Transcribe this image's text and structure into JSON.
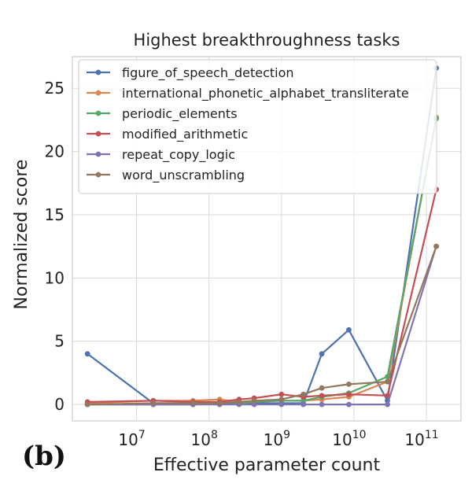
{
  "panel_label": "(b)",
  "chart_data": {
    "type": "line",
    "title": "Highest breakthroughness tasks",
    "xlabel": "Effective parameter count",
    "ylabel": "Normalized score",
    "xscale": "log",
    "xlim": [
      1300000.0,
      300000000000.0
    ],
    "ylim": [
      -1.3,
      27.5
    ],
    "yticks": [
      0,
      5,
      10,
      15,
      20,
      25
    ],
    "xticks": [
      {
        "value": 10000000.0,
        "base": "10",
        "exp": "7"
      },
      {
        "value": 100000000.0,
        "base": "10",
        "exp": "8"
      },
      {
        "value": 1000000000.0,
        "base": "10",
        "exp": "9"
      },
      {
        "value": 10000000000.0,
        "base": "10",
        "exp": "10"
      },
      {
        "value": 100000000000.0,
        "base": "10",
        "exp": "11"
      }
    ],
    "grid": true,
    "legend_position": "upper-left",
    "series": [
      {
        "name": "figure_of_speech_detection",
        "color": "#4c72b0",
        "points": [
          [
            2100000.0,
            4.0
          ],
          [
            17000000.0,
            0.1
          ],
          [
            60000000.0,
            0.1
          ],
          [
            140000000.0,
            0.1
          ],
          [
            260000000.0,
            0.1
          ],
          [
            420000000.0,
            0.1
          ],
          [
            1000000000.0,
            0.1
          ],
          [
            2000000000.0,
            0.1
          ],
          [
            3600000000.0,
            4.0
          ],
          [
            8500000000.0,
            5.9
          ],
          [
            29000000000.0,
            0.3
          ],
          [
            137000000000.0,
            26.6
          ]
        ]
      },
      {
        "name": "international_phonetic_alphabet_transliterate",
        "color": "#dd8452",
        "points": [
          [
            2100000.0,
            0.1
          ],
          [
            17000000.0,
            0.3
          ],
          [
            60000000.0,
            0.3
          ],
          [
            140000000.0,
            0.4
          ],
          [
            260000000.0,
            0.2
          ],
          [
            420000000.0,
            0.2
          ],
          [
            1000000000.0,
            0.3
          ],
          [
            2000000000.0,
            0.3
          ],
          [
            3600000000.0,
            0.4
          ],
          [
            8500000000.0,
            0.6
          ],
          [
            29000000000.0,
            1.8
          ],
          [
            137000000000.0,
            22.7
          ]
        ]
      },
      {
        "name": "periodic_elements",
        "color": "#55a868",
        "points": [
          [
            2100000.0,
            0.0
          ],
          [
            17000000.0,
            0.0
          ],
          [
            60000000.0,
            0.0
          ],
          [
            140000000.0,
            0.1
          ],
          [
            260000000.0,
            0.1
          ],
          [
            420000000.0,
            0.2
          ],
          [
            1000000000.0,
            0.3
          ],
          [
            2000000000.0,
            0.3
          ],
          [
            3600000000.0,
            0.6
          ],
          [
            8500000000.0,
            0.9
          ],
          [
            29000000000.0,
            2.2
          ],
          [
            137000000000.0,
            22.6
          ]
        ]
      },
      {
        "name": "modified_arithmetic",
        "color": "#c44e52",
        "points": [
          [
            2100000.0,
            0.2
          ],
          [
            17000000.0,
            0.3
          ],
          [
            60000000.0,
            0.2
          ],
          [
            140000000.0,
            0.2
          ],
          [
            260000000.0,
            0.4
          ],
          [
            420000000.0,
            0.5
          ],
          [
            1000000000.0,
            0.8
          ],
          [
            2000000000.0,
            0.6
          ],
          [
            3600000000.0,
            0.7
          ],
          [
            8500000000.0,
            0.8
          ],
          [
            29000000000.0,
            0.7
          ],
          [
            137000000000.0,
            17.0
          ]
        ]
      },
      {
        "name": "repeat_copy_logic",
        "color": "#8172b3",
        "points": [
          [
            2100000.0,
            0.0
          ],
          [
            17000000.0,
            0.0
          ],
          [
            60000000.0,
            0.0
          ],
          [
            140000000.0,
            0.0
          ],
          [
            260000000.0,
            0.0
          ],
          [
            420000000.0,
            0.0
          ],
          [
            1000000000.0,
            0.0
          ],
          [
            2000000000.0,
            0.0
          ],
          [
            3600000000.0,
            0.0
          ],
          [
            8500000000.0,
            0.0
          ],
          [
            29000000000.0,
            0.0
          ],
          [
            137000000000.0,
            12.5
          ]
        ]
      },
      {
        "name": "word_unscrambling",
        "color": "#937860",
        "points": [
          [
            2100000.0,
            0.0
          ],
          [
            17000000.0,
            0.1
          ],
          [
            60000000.0,
            0.1
          ],
          [
            140000000.0,
            0.1
          ],
          [
            260000000.0,
            0.2
          ],
          [
            420000000.0,
            0.3
          ],
          [
            1000000000.0,
            0.4
          ],
          [
            2000000000.0,
            0.8
          ],
          [
            3600000000.0,
            1.3
          ],
          [
            8500000000.0,
            1.6
          ],
          [
            29000000000.0,
            1.8
          ],
          [
            137000000000.0,
            12.5
          ]
        ]
      }
    ]
  }
}
